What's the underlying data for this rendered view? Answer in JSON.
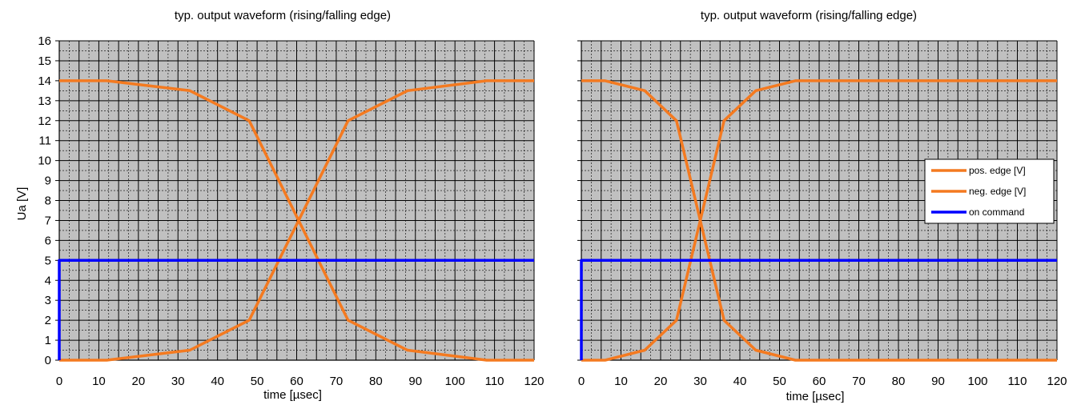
{
  "chart_data": [
    {
      "type": "line",
      "title": "typ. output  waveform  (rising/falling  edge)",
      "xlabel": "time [µsec]",
      "ylabel": "Ua [V]",
      "xlim": [
        0,
        120
      ],
      "ylim": [
        0,
        16
      ],
      "x_ticks": [
        "0",
        "10",
        "20",
        "30",
        "40",
        "50",
        "60",
        "70",
        "80",
        "90",
        "100",
        "110",
        "120"
      ],
      "y_ticks": [
        "0",
        "1",
        "2",
        "3",
        "4",
        "5",
        "6",
        "7",
        "8",
        "9",
        "10",
        "11",
        "12",
        "13",
        "14",
        "15",
        "16"
      ],
      "grid": true,
      "background": "#c0c0c0",
      "series": [
        {
          "color": "#f47a20",
          "x": [
            0,
            12,
            33,
            48,
            73,
            88,
            108,
            120
          ],
          "y": [
            0,
            0,
            0.5,
            2,
            12,
            13.5,
            14,
            14
          ]
        },
        {
          "color": "#f47a20",
          "x": [
            0,
            12,
            33,
            48,
            73,
            88,
            108,
            120
          ],
          "y": [
            14,
            14,
            13.5,
            12,
            2,
            0.5,
            0,
            0
          ]
        },
        {
          "color": "#0000ff",
          "x": [
            0,
            0,
            120
          ],
          "y": [
            0,
            5,
            5
          ]
        }
      ]
    },
    {
      "type": "line",
      "title": "typ. output waveform (rising/falling edge)",
      "xlabel": "time [µsec]",
      "ylabel": "",
      "xlim": [
        0,
        120
      ],
      "ylim": [
        0,
        16
      ],
      "x_ticks": [
        "0",
        "10",
        "20",
        "30",
        "40",
        "50",
        "60",
        "70",
        "80",
        "90",
        "100",
        "110",
        "120"
      ],
      "y_ticks": [],
      "grid": true,
      "background": "#c0c0c0",
      "legend": {
        "position": "right",
        "entries": [
          {
            "label": "pos. edge [V]",
            "color": "#f47a20"
          },
          {
            "label": "neg. edge [V]",
            "color": "#f47a20"
          },
          {
            "label": "on command",
            "color": "#0000ff"
          }
        ]
      },
      "series": [
        {
          "name": "pos. edge [V]",
          "color": "#f47a20",
          "x": [
            0,
            6,
            16,
            24,
            36,
            44,
            54,
            120
          ],
          "y": [
            0,
            0,
            0.5,
            2,
            12,
            13.5,
            14,
            14
          ]
        },
        {
          "name": "neg. edge [V]",
          "color": "#f47a20",
          "x": [
            0,
            6,
            16,
            24,
            36,
            44,
            54,
            120
          ],
          "y": [
            14,
            14,
            13.5,
            12,
            2,
            0.5,
            0,
            0
          ]
        },
        {
          "name": "on command",
          "color": "#0000ff",
          "x": [
            0,
            0,
            120
          ],
          "y": [
            0,
            5,
            5
          ]
        }
      ]
    }
  ]
}
